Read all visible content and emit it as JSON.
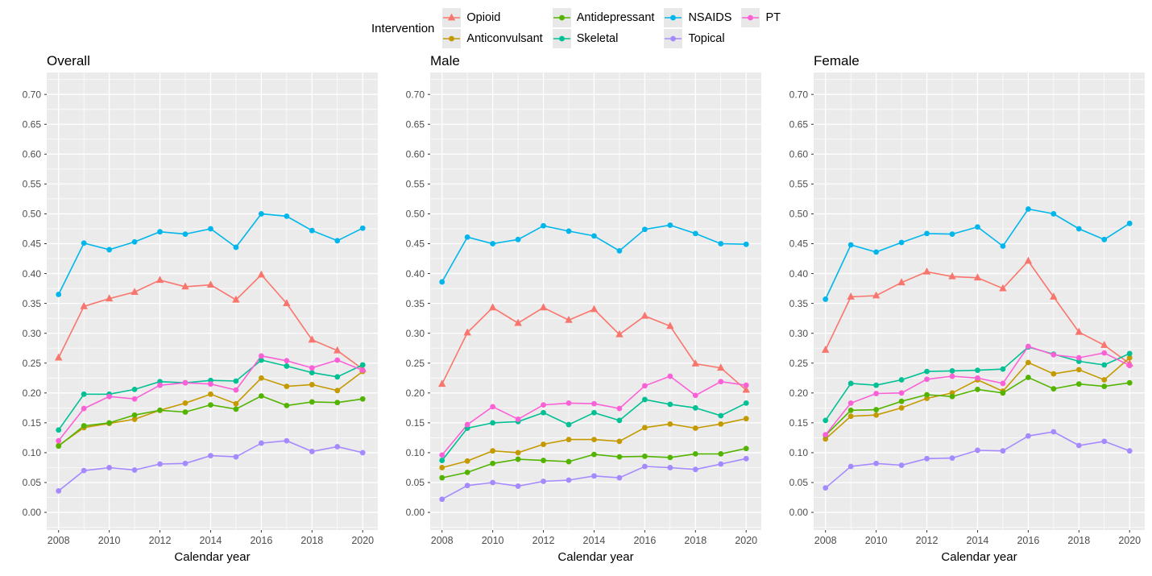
{
  "figure": {
    "legend": {
      "title": "Intervention",
      "entries": [
        {
          "id": "opioid",
          "label": "Opioid",
          "color": "#F8766D",
          "marker": "triangle"
        },
        {
          "id": "anticonvulsant",
          "label": "Anticonvulsant",
          "color": "#C49A00",
          "marker": "circle"
        },
        {
          "id": "antidepressant",
          "label": "Antidepressant",
          "color": "#53B400",
          "marker": "circle"
        },
        {
          "id": "skeletal",
          "label": "Skeletal",
          "color": "#00C094",
          "marker": "circle"
        },
        {
          "id": "nsaids",
          "label": "NSAIDS",
          "color": "#00B6EB",
          "marker": "circle"
        },
        {
          "id": "topical",
          "label": "Topical",
          "color": "#A58AFF",
          "marker": "circle"
        },
        {
          "id": "pt",
          "label": "PT",
          "color": "#FB61D7",
          "marker": "circle"
        }
      ]
    },
    "colors": {
      "panel_bg": "#EBEBEB",
      "grid": "#FFFFFF",
      "tick_text": "#4D4D4D",
      "tick_mark": "#333333",
      "title_text": "#000000"
    }
  },
  "chart_data": [
    {
      "type": "line",
      "title": "Overall",
      "xlabel": "Calendar year",
      "ylabel": "",
      "x": [
        2008,
        2009,
        2010,
        2011,
        2012,
        2013,
        2014,
        2015,
        2016,
        2017,
        2018,
        2019,
        2020
      ],
      "xticks": [
        2008,
        2010,
        2012,
        2014,
        2016,
        2018,
        2020
      ],
      "yticks": [
        0.0,
        0.05,
        0.1,
        0.15,
        0.2,
        0.25,
        0.3,
        0.35,
        0.4,
        0.45,
        0.5,
        0.55,
        0.6,
        0.65,
        0.7
      ],
      "ylim": [
        0,
        0.7
      ],
      "grid": true,
      "series": [
        {
          "name": "Opioid",
          "values": [
            0.259,
            0.345,
            0.358,
            0.369,
            0.389,
            0.378,
            0.381,
            0.356,
            0.398,
            0.35,
            0.289,
            0.271,
            0.24
          ]
        },
        {
          "name": "Anticonvulsant",
          "values": [
            0.112,
            0.142,
            0.149,
            0.156,
            0.171,
            0.183,
            0.198,
            0.182,
            0.225,
            0.211,
            0.214,
            0.204,
            0.236
          ]
        },
        {
          "name": "Antidepressant",
          "values": [
            0.111,
            0.145,
            0.15,
            0.163,
            0.171,
            0.168,
            0.18,
            0.173,
            0.195,
            0.179,
            0.185,
            0.184,
            0.19
          ]
        },
        {
          "name": "Skeletal",
          "values": [
            0.138,
            0.198,
            0.198,
            0.206,
            0.219,
            0.217,
            0.221,
            0.22,
            0.255,
            0.245,
            0.234,
            0.227,
            0.247
          ]
        },
        {
          "name": "NSAIDS",
          "values": [
            0.365,
            0.451,
            0.44,
            0.453,
            0.47,
            0.466,
            0.475,
            0.444,
            0.5,
            0.496,
            0.472,
            0.455,
            0.476
          ]
        },
        {
          "name": "Topical",
          "values": [
            0.036,
            0.07,
            0.075,
            0.071,
            0.081,
            0.082,
            0.095,
            0.093,
            0.116,
            0.12,
            0.102,
            0.11,
            0.1
          ]
        },
        {
          "name": "PT",
          "values": [
            0.12,
            0.174,
            0.194,
            0.19,
            0.213,
            0.217,
            0.215,
            0.205,
            0.262,
            0.254,
            0.242,
            0.255,
            0.238
          ]
        }
      ]
    },
    {
      "type": "line",
      "title": "Male",
      "xlabel": "Calendar year",
      "ylabel": "",
      "x": [
        2008,
        2009,
        2010,
        2011,
        2012,
        2013,
        2014,
        2015,
        2016,
        2017,
        2018,
        2019,
        2020
      ],
      "xticks": [
        2008,
        2010,
        2012,
        2014,
        2016,
        2018,
        2020
      ],
      "yticks": [
        0.0,
        0.05,
        0.1,
        0.15,
        0.2,
        0.25,
        0.3,
        0.35,
        0.4,
        0.45,
        0.5,
        0.55,
        0.6,
        0.65,
        0.7
      ],
      "ylim": [
        0,
        0.7
      ],
      "grid": true,
      "series": [
        {
          "name": "Opioid",
          "values": [
            0.215,
            0.301,
            0.343,
            0.317,
            0.343,
            0.322,
            0.34,
            0.298,
            0.329,
            0.312,
            0.249,
            0.242,
            0.205
          ]
        },
        {
          "name": "Anticonvulsant",
          "values": [
            0.075,
            0.086,
            0.103,
            0.1,
            0.114,
            0.122,
            0.122,
            0.119,
            0.142,
            0.148,
            0.141,
            0.148,
            0.157
          ]
        },
        {
          "name": "Antidepressant",
          "values": [
            0.058,
            0.067,
            0.082,
            0.089,
            0.087,
            0.085,
            0.097,
            0.093,
            0.094,
            0.092,
            0.098,
            0.098,
            0.107
          ]
        },
        {
          "name": "Skeletal",
          "values": [
            0.087,
            0.141,
            0.15,
            0.152,
            0.167,
            0.147,
            0.167,
            0.154,
            0.189,
            0.181,
            0.175,
            0.162,
            0.183
          ]
        },
        {
          "name": "NSAIDS",
          "values": [
            0.386,
            0.461,
            0.45,
            0.457,
            0.48,
            0.471,
            0.463,
            0.438,
            0.474,
            0.481,
            0.467,
            0.45,
            0.449
          ]
        },
        {
          "name": "Topical",
          "values": [
            0.022,
            0.045,
            0.05,
            0.044,
            0.052,
            0.054,
            0.061,
            0.058,
            0.077,
            0.075,
            0.072,
            0.081,
            0.09
          ]
        },
        {
          "name": "PT",
          "values": [
            0.096,
            0.147,
            0.177,
            0.156,
            0.18,
            0.183,
            0.182,
            0.174,
            0.212,
            0.228,
            0.196,
            0.219,
            0.213
          ]
        }
      ]
    },
    {
      "type": "line",
      "title": "Female",
      "xlabel": "Calendar year",
      "ylabel": "",
      "x": [
        2008,
        2009,
        2010,
        2011,
        2012,
        2013,
        2014,
        2015,
        2016,
        2017,
        2018,
        2019,
        2020
      ],
      "xticks": [
        2008,
        2010,
        2012,
        2014,
        2016,
        2018,
        2020
      ],
      "yticks": [
        0.0,
        0.05,
        0.1,
        0.15,
        0.2,
        0.25,
        0.3,
        0.35,
        0.4,
        0.45,
        0.5,
        0.55,
        0.6,
        0.65,
        0.7
      ],
      "ylim": [
        0,
        0.7
      ],
      "grid": true,
      "series": [
        {
          "name": "Opioid",
          "values": [
            0.272,
            0.361,
            0.363,
            0.385,
            0.403,
            0.395,
            0.393,
            0.375,
            0.421,
            0.361,
            0.302,
            0.28,
            0.249
          ]
        },
        {
          "name": "Anticonvulsant",
          "values": [
            0.123,
            0.161,
            0.163,
            0.175,
            0.191,
            0.2,
            0.222,
            0.203,
            0.251,
            0.232,
            0.239,
            0.222,
            0.259
          ]
        },
        {
          "name": "Antidepressant",
          "values": [
            0.129,
            0.171,
            0.172,
            0.186,
            0.197,
            0.194,
            0.206,
            0.2,
            0.226,
            0.207,
            0.215,
            0.211,
            0.217
          ]
        },
        {
          "name": "Skeletal",
          "values": [
            0.154,
            0.216,
            0.213,
            0.222,
            0.236,
            0.237,
            0.238,
            0.24,
            0.277,
            0.265,
            0.253,
            0.247,
            0.266
          ]
        },
        {
          "name": "NSAIDS",
          "values": [
            0.357,
            0.448,
            0.436,
            0.452,
            0.467,
            0.466,
            0.478,
            0.446,
            0.508,
            0.5,
            0.475,
            0.457,
            0.484
          ]
        },
        {
          "name": "Topical",
          "values": [
            0.041,
            0.077,
            0.082,
            0.079,
            0.09,
            0.091,
            0.104,
            0.103,
            0.128,
            0.135,
            0.112,
            0.119,
            0.103
          ]
        },
        {
          "name": "PT",
          "values": [
            0.13,
            0.183,
            0.199,
            0.2,
            0.223,
            0.228,
            0.225,
            0.216,
            0.278,
            0.264,
            0.259,
            0.267,
            0.246
          ]
        }
      ]
    }
  ]
}
